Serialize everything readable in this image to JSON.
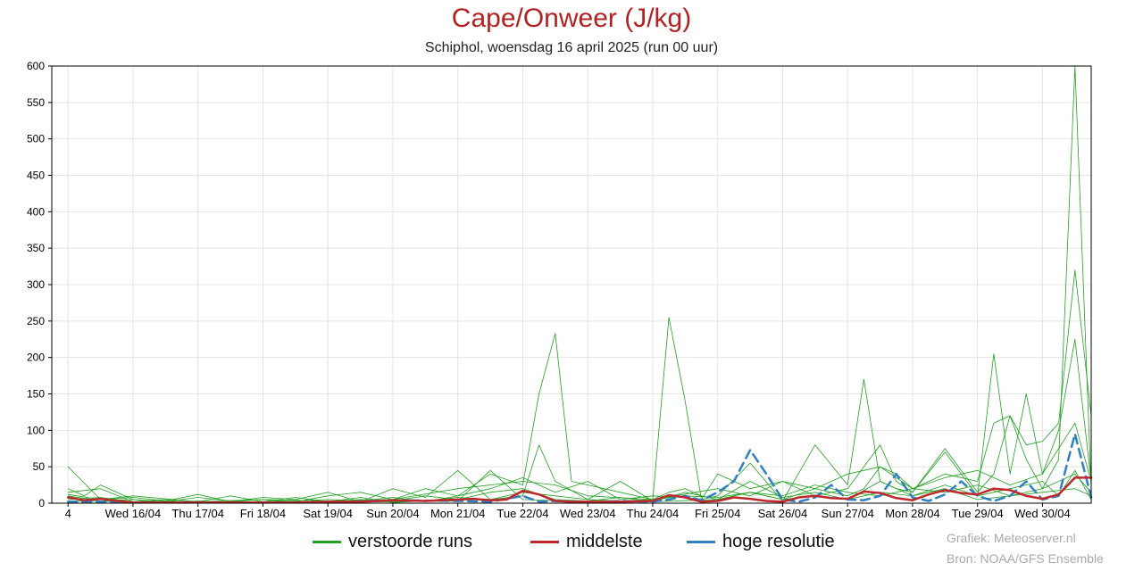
{
  "header": {
    "title": "Cape/Onweer (J/kg)",
    "subtitle": "Schiphol, woensdag 16 april 2025 (run 00 uur)"
  },
  "legend": {
    "items": [
      {
        "label": "verstoorde runs",
        "color": "#22a022"
      },
      {
        "label": "middelste",
        "color": "#c0272d"
      },
      {
        "label": "hoge resolutie",
        "color": "#2f7fc1"
      }
    ]
  },
  "credits": {
    "line1": "Grafiek: Meteoserver.nl",
    "line2": "Bron: NOAA/GFS Ensemble"
  },
  "chart_data": {
    "type": "line",
    "ylim": [
      0,
      600
    ],
    "xlim": [
      -0.25,
      15.75
    ],
    "yticks": [
      0,
      50,
      100,
      150,
      200,
      250,
      300,
      350,
      400,
      450,
      500,
      550,
      600
    ],
    "x_tick_labels": [
      {
        "x": 0,
        "label": "4"
      },
      {
        "x": 1,
        "label": "Wed 16/04"
      },
      {
        "x": 2,
        "label": "Thu 17/04"
      },
      {
        "x": 3,
        "label": "Fri 18/04"
      },
      {
        "x": 4,
        "label": "Sat 19/04"
      },
      {
        "x": 5,
        "label": "Sun 20/04"
      },
      {
        "x": 6,
        "label": "Mon 21/04"
      },
      {
        "x": 7,
        "label": "Tue 22/04"
      },
      {
        "x": 8,
        "label": "Wed 23/04"
      },
      {
        "x": 9,
        "label": "Thu 24/04"
      },
      {
        "x": 10,
        "label": "Fri 25/04"
      },
      {
        "x": 11,
        "label": "Sat 26/04"
      },
      {
        "x": 12,
        "label": "Sun 27/04"
      },
      {
        "x": 13,
        "label": "Mon 28/04"
      },
      {
        "x": 14,
        "label": "Tue 29/04"
      },
      {
        "x": 15,
        "label": "Wed 30/04"
      }
    ],
    "grid": true,
    "series": [
      {
        "name": "middelste",
        "color": "#c0272d",
        "width": 2.5,
        "dash": "",
        "x": [
          0.0,
          0.25,
          0.5,
          0.75,
          1.0,
          1.25,
          1.5,
          1.75,
          2.0,
          2.5,
          3.0,
          3.5,
          4.0,
          4.5,
          5.0,
          5.5,
          6.0,
          6.25,
          6.5,
          6.75,
          7.0,
          7.25,
          7.5,
          7.75,
          8.0,
          8.5,
          9.0,
          9.25,
          9.5,
          9.75,
          10.0,
          10.25,
          10.5,
          10.75,
          11.0,
          11.25,
          11.5,
          11.75,
          12.0,
          12.25,
          12.5,
          12.75,
          13.0,
          13.25,
          13.5,
          13.75,
          14.0,
          14.25,
          14.5,
          14.75,
          15.0,
          15.25,
          15.5,
          15.75
        ],
        "y": [
          8,
          4,
          6,
          3,
          1,
          1,
          1,
          1,
          1,
          1,
          1,
          1,
          2,
          2,
          4,
          3,
          5,
          6,
          4,
          5,
          17,
          12,
          3,
          2,
          2,
          2,
          3,
          11,
          8,
          2,
          3,
          8,
          6,
          3,
          2,
          8,
          10,
          7,
          6,
          16,
          14,
          7,
          4,
          12,
          18,
          14,
          12,
          20,
          18,
          10,
          6,
          12,
          35,
          35
        ]
      },
      {
        "name": "hoge resolutie",
        "color": "#2f7fc1",
        "width": 2.5,
        "dash": "10,6",
        "x": [
          0.0,
          0.5,
          1.0,
          1.5,
          2.0,
          3.0,
          4.0,
          5.0,
          6.0,
          6.5,
          7.0,
          7.25,
          7.5,
          8.0,
          8.5,
          9.0,
          9.25,
          9.5,
          9.75,
          10.0,
          10.25,
          10.5,
          10.75,
          11.0,
          11.25,
          11.5,
          11.75,
          12.0,
          12.25,
          12.5,
          12.75,
          13.0,
          13.25,
          13.5,
          13.75,
          14.0,
          14.25,
          14.5,
          14.75,
          15.0,
          15.25,
          15.5,
          15.75
        ],
        "y": [
          2,
          2,
          1,
          1,
          1,
          1,
          1,
          4,
          3,
          2,
          10,
          2,
          3,
          1,
          3,
          2,
          5,
          10,
          4,
          15,
          30,
          73,
          40,
          5,
          2,
          8,
          25,
          5,
          4,
          10,
          40,
          8,
          3,
          12,
          30,
          10,
          3,
          10,
          30,
          5,
          10,
          95,
          8
        ]
      },
      {
        "name": "",
        "color": "#22a022",
        "width": 0.8,
        "dash": "",
        "x": [
          0.0,
          0.25,
          0.5,
          1.0,
          1.5,
          2.0,
          2.5,
          3.0,
          3.5,
          4.0,
          4.5,
          5.0,
          5.5,
          6.0,
          6.5,
          7.0,
          7.25,
          7.5,
          7.75,
          8.0,
          8.5,
          9.0,
          9.25,
          9.5,
          9.75,
          10.0,
          10.5,
          11.0,
          11.5,
          12.0,
          12.25,
          12.5,
          12.75,
          13.0,
          13.5,
          14.0,
          14.25,
          14.5,
          14.75,
          15.0,
          15.25,
          15.5,
          15.75
        ],
        "y": [
          20,
          10,
          25,
          5,
          2,
          8,
          3,
          5,
          2,
          10,
          15,
          5,
          20,
          10,
          40,
          25,
          150,
          233,
          30,
          25,
          15,
          5,
          15,
          20,
          10,
          5,
          15,
          5,
          20,
          10,
          20,
          50,
          40,
          20,
          40,
          30,
          110,
          120,
          80,
          85,
          110,
          320,
          120
        ]
      },
      {
        "name": "",
        "color": "#22a022",
        "width": 0.8,
        "dash": "",
        "x": [
          0.0,
          0.5,
          1.0,
          1.5,
          2.0,
          2.5,
          3.0,
          3.5,
          4.0,
          4.5,
          5.0,
          5.5,
          6.0,
          6.5,
          7.0,
          7.25,
          7.5,
          8.0,
          8.5,
          9.0,
          9.25,
          9.5,
          9.75,
          10.0,
          10.5,
          11.0,
          11.5,
          12.0,
          12.25,
          12.5,
          12.75,
          13.0,
          13.5,
          14.0,
          14.25,
          14.5,
          14.75,
          15.0,
          15.25,
          15.5,
          15.75
        ],
        "y": [
          50,
          5,
          8,
          3,
          12,
          2,
          8,
          5,
          15,
          2,
          20,
          8,
          45,
          5,
          10,
          80,
          30,
          5,
          30,
          3,
          255,
          140,
          5,
          10,
          55,
          3,
          80,
          25,
          170,
          30,
          20,
          15,
          70,
          10,
          205,
          40,
          150,
          40,
          100,
          225,
          30
        ]
      },
      {
        "name": "",
        "color": "#22a022",
        "width": 0.8,
        "dash": "",
        "x": [
          0.0,
          0.5,
          1.0,
          1.5,
          2.0,
          2.5,
          3.0,
          3.5,
          4.0,
          4.5,
          5.0,
          5.5,
          6.0,
          6.5,
          7.0,
          7.5,
          8.0,
          8.5,
          9.0,
          9.5,
          9.75,
          10.0,
          10.5,
          11.0,
          11.5,
          12.0,
          12.5,
          12.75,
          13.0,
          13.5,
          14.0,
          14.25,
          14.5,
          14.75,
          15.0,
          15.25,
          15.5,
          15.75
        ],
        "y": [
          15,
          20,
          2,
          5,
          2,
          10,
          2,
          3,
          5,
          3,
          8,
          2,
          10,
          20,
          35,
          15,
          30,
          5,
          10,
          8,
          5,
          40,
          20,
          30,
          10,
          20,
          80,
          30,
          15,
          75,
          15,
          40,
          120,
          60,
          20,
          60,
          600,
          20
        ]
      },
      {
        "name": "",
        "color": "#22a022",
        "width": 0.8,
        "dash": "",
        "x": [
          0.0,
          0.5,
          1.0,
          1.5,
          2.0,
          2.5,
          3.0,
          3.5,
          4.0,
          4.5,
          5.0,
          5.5,
          6.0,
          6.5,
          7.0,
          7.5,
          8.0,
          8.5,
          9.0,
          9.5,
          10.0,
          10.5,
          11.0,
          11.5,
          12.0,
          12.5,
          13.0,
          13.5,
          14.0,
          14.5,
          15.0,
          15.25,
          15.5,
          15.75
        ],
        "y": [
          10,
          3,
          5,
          1,
          3,
          1,
          2,
          8,
          2,
          5,
          3,
          10,
          5,
          15,
          20,
          5,
          3,
          8,
          2,
          15,
          5,
          30,
          8,
          15,
          5,
          30,
          10,
          25,
          10,
          20,
          30,
          10,
          45,
          5
        ]
      },
      {
        "name": "",
        "color": "#22a022",
        "width": 0.8,
        "dash": "",
        "x": [
          0.0,
          0.5,
          1.0,
          1.5,
          2.0,
          2.5,
          3.0,
          3.5,
          4.0,
          4.5,
          5.0,
          5.5,
          6.0,
          6.5,
          7.0,
          7.5,
          8.0,
          8.5,
          9.0,
          9.5,
          10.0,
          10.5,
          11.0,
          11.5,
          12.0,
          12.5,
          13.0,
          13.5,
          14.0,
          14.5,
          15.0,
          15.5,
          15.75
        ],
        "y": [
          5,
          8,
          2,
          3,
          1,
          2,
          5,
          1,
          2,
          8,
          1,
          3,
          8,
          5,
          15,
          10,
          5,
          3,
          5,
          10,
          8,
          15,
          10,
          25,
          15,
          10,
          20,
          15,
          25,
          10,
          15,
          20,
          10
        ]
      },
      {
        "name": "",
        "color": "#22a022",
        "width": 0.8,
        "dash": "",
        "x": [
          0.0,
          0.5,
          1.0,
          2.0,
          3.0,
          4.0,
          5.0,
          6.0,
          7.0,
          7.5,
          8.0,
          9.0,
          10.0,
          10.5,
          11.0,
          11.5,
          12.0,
          12.5,
          13.0,
          13.5,
          14.0,
          14.5,
          15.0,
          15.5,
          15.75
        ],
        "y": [
          12,
          5,
          10,
          2,
          5,
          3,
          5,
          20,
          30,
          25,
          10,
          5,
          20,
          10,
          30,
          20,
          40,
          50,
          20,
          35,
          45,
          25,
          40,
          110,
          30
        ]
      },
      {
        "name": "",
        "color": "#22a022",
        "width": 0.8,
        "dash": "",
        "x": [
          0.0,
          1.0,
          2.0,
          3.0,
          4.0,
          5.0,
          6.0,
          6.5,
          7.0,
          8.0,
          9.0,
          10.0,
          10.5,
          11.0,
          11.5,
          12.0,
          12.5,
          13.0,
          13.5,
          14.0,
          14.5,
          15.0,
          15.5,
          15.75
        ],
        "y": [
          3,
          2,
          1,
          1,
          1,
          2,
          3,
          45,
          5,
          2,
          2,
          5,
          15,
          5,
          10,
          5,
          15,
          10,
          20,
          5,
          10,
          20,
          40,
          15
        ]
      }
    ]
  }
}
